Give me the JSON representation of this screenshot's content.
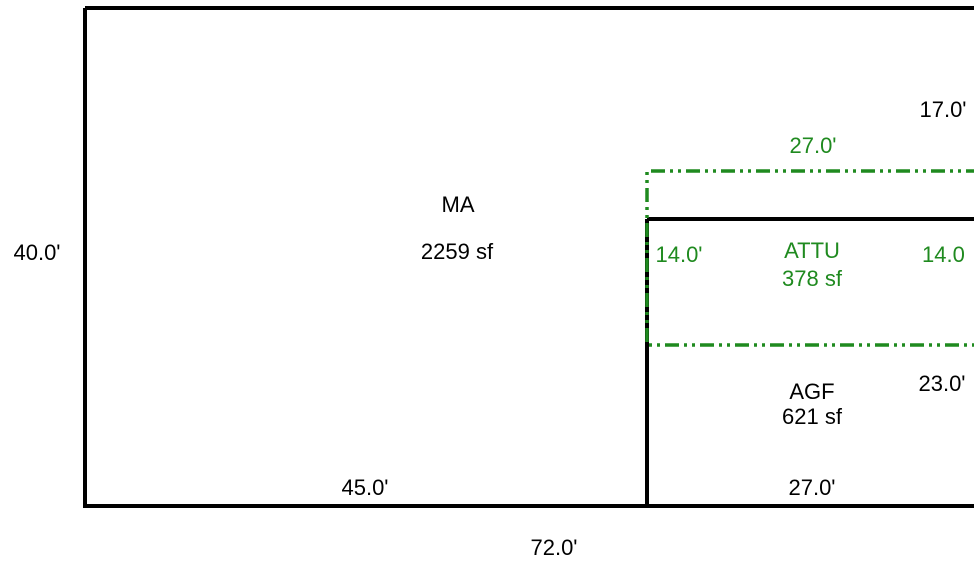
{
  "colors": {
    "outline": "#000000",
    "attu": "#1f8a1f"
  },
  "areas": {
    "ma": {
      "name": "MA",
      "area": "2259 sf"
    },
    "attu": {
      "name": "ATTU",
      "area": "378 sf"
    },
    "agf": {
      "name": "AGF",
      "area": "621 sf"
    }
  },
  "dimensions": {
    "overall_height": "40.0'",
    "overall_width": "72.0'",
    "ma_bottom": "45.0'",
    "agf_bottom": "27.0'",
    "right_upper": "17.0'",
    "right_lower": "23.0'",
    "attu_top": "27.0'",
    "attu_left": "14.0'",
    "attu_right": "14.0"
  }
}
